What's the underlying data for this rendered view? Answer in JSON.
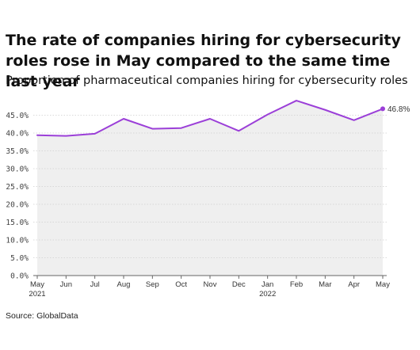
{
  "title": "The rate of companies hiring for cybersecurity roles rose in May compared to the same time last year",
  "subtitle": "Proportion of pharmaceutical companies hiring for cybersecurity roles",
  "source": "Source: GlobalData",
  "colors": {
    "line": "#9b3fd8",
    "area": "#efefef",
    "grid": "#cfcfcf",
    "baseline": "#666666"
  },
  "chart_data": {
    "type": "area",
    "title": "The rate of companies hiring for cybersecurity roles rose in May compared to the same time last year",
    "subtitle": "Proportion of pharmaceutical companies hiring for cybersecurity roles",
    "xlabel": "",
    "ylabel": "",
    "ylim": [
      0,
      45
    ],
    "yticks": [
      "0.0%",
      "5.0%",
      "10.0%",
      "15.0%",
      "20.0%",
      "25.0%",
      "30.0%",
      "35.0%",
      "40.0%",
      "45.0%"
    ],
    "xticks": [
      {
        "label": "May",
        "sublabel": "2021"
      },
      {
        "label": "Jun",
        "sublabel": ""
      },
      {
        "label": "Jul",
        "sublabel": ""
      },
      {
        "label": "Aug",
        "sublabel": ""
      },
      {
        "label": "Sep",
        "sublabel": ""
      },
      {
        "label": "Oct",
        "sublabel": ""
      },
      {
        "label": "Nov",
        "sublabel": ""
      },
      {
        "label": "Dec",
        "sublabel": ""
      },
      {
        "label": "Jan",
        "sublabel": "2022"
      },
      {
        "label": "Feb",
        "sublabel": ""
      },
      {
        "label": "Mar",
        "sublabel": ""
      },
      {
        "label": "Apr",
        "sublabel": ""
      },
      {
        "label": "May",
        "sublabel": ""
      }
    ],
    "series": [
      {
        "values": [
          39.4,
          39.2,
          39.8,
          44.0,
          41.2,
          41.4,
          44.0,
          40.6,
          45.2,
          49.1,
          46.5,
          43.6,
          46.8
        ]
      }
    ],
    "end_label": "46.8%",
    "grid": true,
    "legend": "none"
  }
}
